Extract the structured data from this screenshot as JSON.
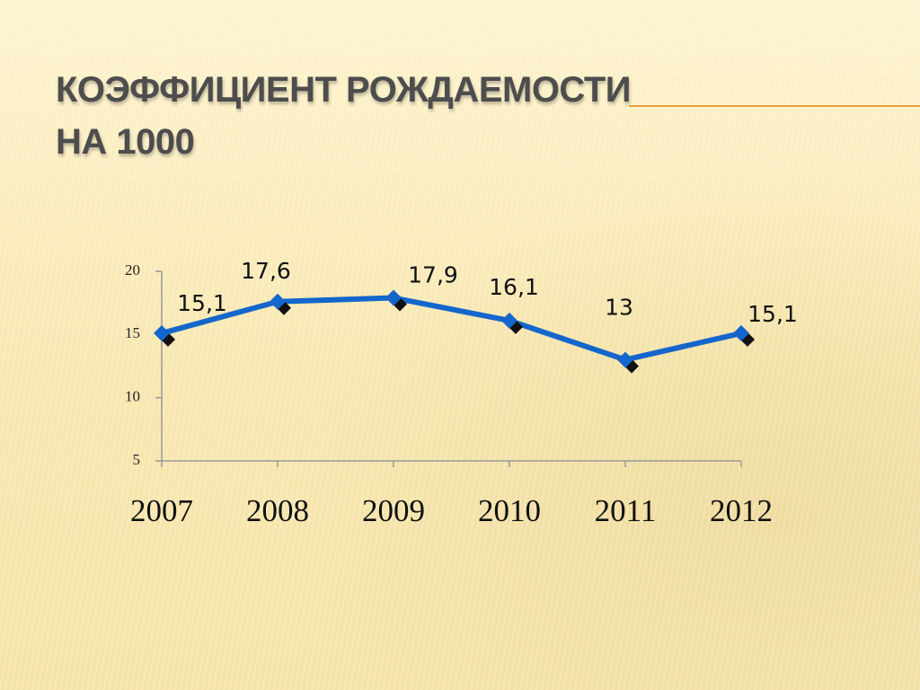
{
  "chart_data": {
    "type": "line",
    "title": [
      "КОЭФФИЦИЕНТ РОЖДАЕМОСТИ",
      "НА 1000"
    ],
    "categories": [
      "2007",
      "2008",
      "2009",
      "2010",
      "2011",
      "2012"
    ],
    "values": [
      15.1,
      17.6,
      17.9,
      16.1,
      13,
      15.1
    ],
    "value_labels": [
      "15,1",
      "17,6",
      "17,9",
      "16,1",
      "13",
      "15,1"
    ],
    "color": "#1466cc",
    "ylim": [
      5,
      20
    ],
    "yticks": [
      5,
      10,
      15,
      20
    ],
    "grid": false
  }
}
